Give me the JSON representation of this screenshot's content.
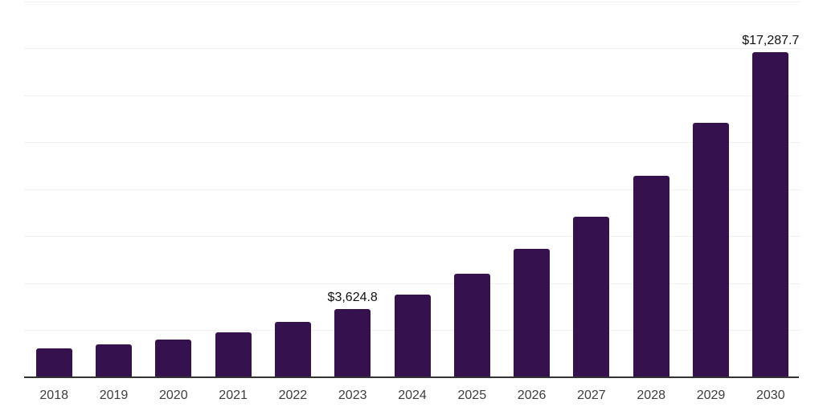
{
  "chart_data": {
    "type": "bar",
    "title": "",
    "xlabel": "",
    "ylabel": "",
    "categories": [
      "2018",
      "2019",
      "2020",
      "2021",
      "2022",
      "2023",
      "2024",
      "2025",
      "2026",
      "2027",
      "2028",
      "2029",
      "2030"
    ],
    "values": [
      1510,
      1740,
      2010,
      2375,
      2930,
      3624.8,
      4375,
      5480,
      6830,
      8520,
      10730,
      13560,
      17287.7
    ],
    "data_labels": [
      {
        "category": "2023",
        "text": "$3,624.8"
      },
      {
        "category": "2030",
        "text": "$17,287.7"
      }
    ],
    "ylim": [
      0,
      20000
    ],
    "gridline_step": 2500,
    "grid": "horizontal",
    "y_tick_labels_visible": false,
    "legend": "none",
    "colors": {
      "bar": "#35114D",
      "gridline": "#f1f1f1",
      "axis_line": "#333333",
      "tick_label": "#3d3d3d",
      "data_label": "#111111",
      "background": "#ffffff"
    }
  }
}
